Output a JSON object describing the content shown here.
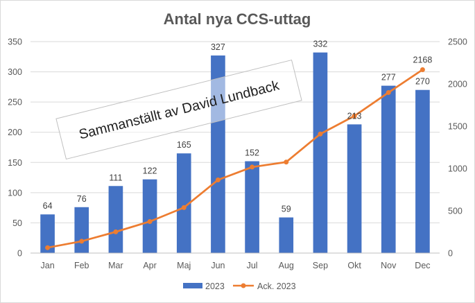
{
  "chart_data": {
    "type": "bar",
    "title": "Antal nya CCS-uttag",
    "categories": [
      "Jan",
      "Feb",
      "Mar",
      "Apr",
      "Maj",
      "Jun",
      "Jul",
      "Aug",
      "Sep",
      "Okt",
      "Nov",
      "Dec"
    ],
    "series": [
      {
        "name": "2023",
        "type": "bar",
        "axis": "left",
        "color": "#4472C4",
        "values": [
          64,
          76,
          111,
          122,
          165,
          327,
          152,
          59,
          332,
          213,
          277,
          270
        ],
        "data_labels": true
      },
      {
        "name": "Ack. 2023",
        "type": "line",
        "axis": "right",
        "color": "#ED7D31",
        "values": [
          64,
          140,
          251,
          373,
          538,
          865,
          1017,
          1076,
          1408,
          1621,
          1898,
          2168
        ],
        "data_labels": false,
        "last_label": "2168"
      }
    ],
    "y_left": {
      "min": 0,
      "max": 350,
      "ticks": [
        0,
        50,
        100,
        150,
        200,
        250,
        300,
        350
      ]
    },
    "y_right": {
      "min": 0,
      "max": 2500,
      "ticks": [
        0,
        500,
        1000,
        1500,
        2000,
        2500
      ]
    },
    "grid": true,
    "legend_position": "bottom",
    "watermark": "Sammanställt av David Lundback"
  }
}
